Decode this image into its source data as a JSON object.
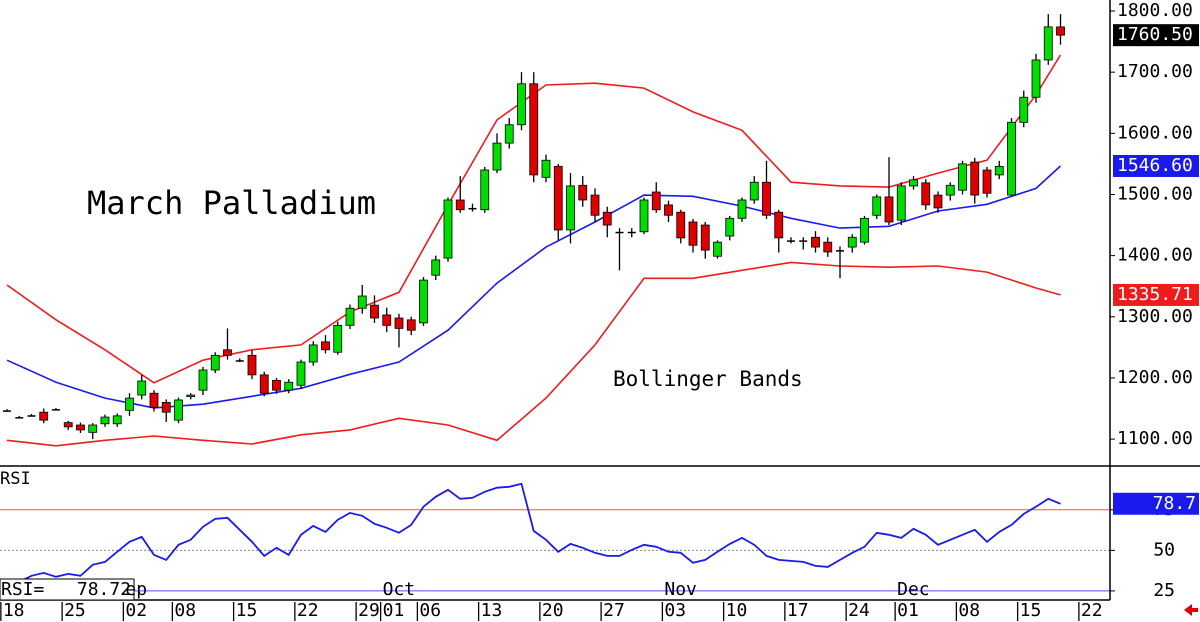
{
  "chart_data": [
    {
      "type": "candlestick",
      "annotations": [
        "March Palladium",
        "Bollinger Bands"
      ],
      "xlim": [
        -0.57,
        90.04
      ],
      "xticks": [
        {
          "value": 0,
          "label": "18"
        },
        {
          "value": 5,
          "label": "25"
        },
        {
          "value": 10,
          "label": "02"
        },
        {
          "value": 14,
          "label": "08"
        },
        {
          "value": 19,
          "label": "15"
        },
        {
          "value": 24,
          "label": "22"
        },
        {
          "value": 29,
          "label": "29"
        },
        {
          "value": 31,
          "label": "01"
        },
        {
          "value": 34,
          "label": "06"
        },
        {
          "value": 39,
          "label": "13"
        },
        {
          "value": 44,
          "label": "20"
        },
        {
          "value": 49,
          "label": "27"
        },
        {
          "value": 54,
          "label": "03"
        },
        {
          "value": 59,
          "label": "10"
        },
        {
          "value": 64,
          "label": "17"
        },
        {
          "value": 69,
          "label": "24"
        },
        {
          "value": 73,
          "label": "01"
        },
        {
          "value": 78,
          "label": "08"
        },
        {
          "value": 83,
          "label": "15"
        },
        {
          "value": 88,
          "label": "22"
        }
      ],
      "months": [
        {
          "value": 10,
          "label": "ep"
        },
        {
          "value": 31,
          "label": "Oct"
        },
        {
          "value": 54,
          "label": "Nov"
        },
        {
          "value": 73,
          "label": "Dec"
        }
      ],
      "ylim": [
        1056,
        1818
      ],
      "yticks": [
        {
          "value": 1800,
          "label": "1800.00"
        },
        {
          "value": 1700,
          "label": "1700.00"
        },
        {
          "value": 1600,
          "label": "1600.00"
        },
        {
          "value": 1500,
          "label": "1500.00"
        },
        {
          "value": 1400,
          "label": "1400.00"
        },
        {
          "value": 1300,
          "label": "1300.00"
        },
        {
          "value": 1200,
          "label": "1200.00"
        },
        {
          "value": 1100,
          "label": "1100.00"
        }
      ],
      "up_color": "#00dd00",
      "down_color": "#e00000",
      "ohlc": {
        "open": [
          1147,
          1136,
          1139,
          1144,
          1149,
          1127,
          1123,
          1111,
          1125,
          1125,
          1147,
          1172,
          1175,
          1160,
          1131,
          1170,
          1180,
          1213,
          1246,
          1229,
          1237,
          1205,
          1196,
          1180,
          1188,
          1226,
          1259,
          1242,
          1286,
          1314,
          1319,
          1303,
          1298,
          1295,
          1290,
          1368,
          1396,
          1491,
          1478,
          1475,
          1540,
          1584,
          1614,
          1681,
          1528,
          1546,
          1442,
          1515,
          1499,
          1471,
          1439,
          1439,
          1439,
          1504,
          1483,
          1471,
          1455,
          1450,
          1399,
          1432,
          1461,
          1491,
          1520,
          1471,
          1425,
          1425,
          1430,
          1422,
          1409,
          1414,
          1422,
          1466,
          1496,
          1458,
          1514,
          1519,
          1499,
          1499,
          1507,
          1553,
          1540,
          1532,
          1499,
          1618,
          1659,
          1720,
          1774
        ],
        "high": [
          1149,
          1138,
          1141,
          1150,
          1151,
          1130,
          1127,
          1126,
          1140,
          1142,
          1175,
          1205,
          1180,
          1165,
          1168,
          1175,
          1218,
          1242,
          1281,
          1232,
          1245,
          1210,
          1200,
          1198,
          1230,
          1260,
          1270,
          1292,
          1320,
          1352,
          1335,
          1315,
          1305,
          1300,
          1365,
          1400,
          1495,
          1530,
          1485,
          1545,
          1600,
          1625,
          1700,
          1700,
          1565,
          1550,
          1535,
          1530,
          1510,
          1480,
          1445,
          1445,
          1495,
          1520,
          1490,
          1475,
          1460,
          1455,
          1425,
          1465,
          1495,
          1530,
          1555,
          1475,
          1430,
          1430,
          1440,
          1430,
          1415,
          1435,
          1465,
          1500,
          1561,
          1520,
          1530,
          1525,
          1505,
          1520,
          1555,
          1560,
          1545,
          1555,
          1625,
          1670,
          1730,
          1795,
          1795
        ],
        "low": [
          1145,
          1134,
          1137,
          1126,
          1147,
          1115,
          1110,
          1100,
          1120,
          1120,
          1138,
          1165,
          1145,
          1128,
          1126,
          1165,
          1172,
          1208,
          1230,
          1226,
          1198,
          1170,
          1174,
          1175,
          1182,
          1220,
          1240,
          1238,
          1280,
          1305,
          1290,
          1275,
          1250,
          1270,
          1285,
          1360,
          1390,
          1470,
          1472,
          1470,
          1535,
          1575,
          1605,
          1520,
          1520,
          1425,
          1420,
          1480,
          1455,
          1430,
          1376,
          1430,
          1435,
          1470,
          1455,
          1420,
          1405,
          1395,
          1395,
          1425,
          1455,
          1485,
          1460,
          1405,
          1420,
          1410,
          1405,
          1398,
          1363,
          1405,
          1418,
          1460,
          1450,
          1450,
          1508,
          1475,
          1470,
          1490,
          1500,
          1485,
          1495,
          1525,
          1510,
          1610,
          1650,
          1712,
          1745
        ],
        "close": [
          1147,
          1136,
          1139,
          1131,
          1149,
          1120,
          1115,
          1123,
          1136,
          1138,
          1167,
          1195,
          1152,
          1144,
          1164,
          1172,
          1213,
          1237,
          1237,
          1229,
          1205,
          1175,
          1180,
          1193,
          1226,
          1254,
          1246,
          1286,
          1314,
          1334,
          1298,
          1286,
          1281,
          1278,
          1360,
          1393,
          1491,
          1475,
          1478,
          1540,
          1584,
          1614,
          1681,
          1532,
          1556,
          1442,
          1514,
          1491,
          1466,
          1450,
          1439,
          1439,
          1491,
          1475,
          1466,
          1429,
          1417,
          1409,
          1422,
          1461,
          1491,
          1520,
          1466,
          1429,
          1425,
          1425,
          1414,
          1406,
          1409,
          1430,
          1461,
          1496,
          1455,
          1514,
          1524,
          1483,
          1478,
          1515,
          1550,
          1499,
          1502,
          1546,
          1618,
          1659,
          1720,
          1774,
          1760.5
        ],
        "last_label": "1760.50",
        "label_color": "#000000"
      },
      "bands": {
        "x": [
          0,
          4,
          8,
          12,
          16,
          20,
          24,
          28,
          32,
          36,
          40,
          44,
          48,
          52,
          56,
          60,
          64,
          68,
          72,
          76,
          80,
          84,
          86
        ],
        "series": [
          {
            "color": "#ee1c1c",
            "values": [
              1352,
              1295,
              1246,
              1192,
              1229,
              1246,
              1254,
              1308,
              1340,
              1483,
              1622,
              1679,
              1682,
              1674,
              1635,
              1605,
              1520,
              1514,
              1512,
              1535,
              1556,
              1663,
              1728
            ]
          },
          {
            "color": "#1a1aee",
            "values": [
              1229,
              1193,
              1167,
              1151,
              1157,
              1170,
              1183,
              1206,
              1226,
              1278,
              1355,
              1414,
              1455,
              1499,
              1497,
              1481,
              1461,
              1445,
              1448,
              1473,
              1484,
              1510,
              1546.6
            ],
            "last_label": "1546.60"
          },
          {
            "color": "#ee1c1c",
            "values": [
              1098,
              1089,
              1098,
              1105,
              1098,
              1092,
              1107,
              1115,
              1134,
              1123,
              1098,
              1167,
              1254,
              1363,
              1363,
              1376,
              1389,
              1383,
              1381,
              1383,
              1373,
              1347,
              1335.71
            ],
            "last_label": "1335.71"
          }
        ]
      }
    },
    {
      "type": "line",
      "title": "RSI",
      "color": "#1a1aee",
      "values": [
        26.9,
        30.6,
        34.3,
        36.1,
        33.7,
        35.5,
        34.3,
        41.1,
        42.9,
        49.1,
        55.3,
        58.3,
        47.2,
        44.1,
        53.4,
        56.5,
        64.5,
        69.4,
        70.1,
        62.7,
        55.3,
        46.6,
        51.6,
        47.2,
        59.6,
        65.1,
        61.4,
        68.8,
        73.1,
        71.3,
        66.4,
        63.9,
        60.8,
        65.7,
        76.9,
        83.0,
        87.3,
        81.8,
        82.4,
        86.1,
        88.6,
        89.2,
        91.0,
        62.0,
        56.5,
        49.1,
        54.0,
        51.6,
        48.5,
        46.6,
        46.6,
        50.3,
        53.4,
        52.2,
        49.1,
        48.5,
        42.3,
        44.1,
        49.1,
        54.0,
        57.7,
        53.4,
        46.6,
        44.1,
        43.5,
        42.9,
        40.4,
        39.8,
        44.1,
        48.5,
        52.2,
        60.8,
        59.6,
        57.7,
        63.3,
        59.6,
        53.4,
        56.5,
        59.6,
        62.7,
        55.3,
        61.4,
        65.7,
        72.5,
        76.9,
        81.8,
        78.72
      ],
      "last_label": "78.7",
      "readout": "RSI=   78.72",
      "ylim": [
        19.4,
        102
      ],
      "yticks": [
        25,
        50,
        75
      ],
      "grid_colors": [
        "#5050ff",
        "#888888",
        "#ee5555"
      ]
    }
  ]
}
